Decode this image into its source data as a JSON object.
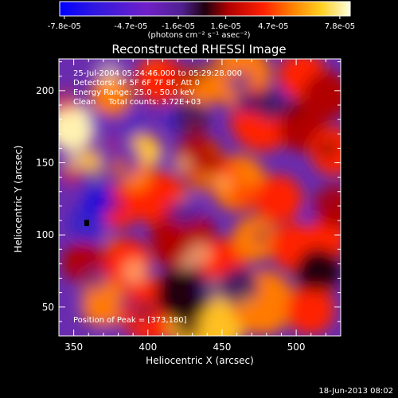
{
  "colorbar": {
    "tick_labels": [
      "-7.8e-05",
      "-4.7e-05",
      "-1.6e-05",
      "1.6e-05",
      "4.7e-05",
      "7.8e-05"
    ],
    "units_label": "(photons cm⁻² s⁻¹ asec⁻²)",
    "range": [
      -7.8e-05,
      7.8e-05
    ]
  },
  "chart_data": {
    "type": "heatmap",
    "title": "Reconstructed RHESSI Image",
    "xlabel": "Heliocentric X (arcsec)",
    "ylabel": "Heliocentric Y (arcsec)",
    "xlim": [
      340,
      530
    ],
    "ylim": [
      30,
      222
    ],
    "x_ticks": [
      350,
      400,
      450,
      500
    ],
    "y_ticks": [
      50,
      100,
      150,
      200
    ],
    "x_tick_labels": [
      "350",
      "400",
      "450",
      "500"
    ],
    "y_tick_labels": [
      "50",
      "100",
      "150",
      "200"
    ],
    "colormap": "rainbow-heat (blue-purple-red-orange-yellow-white)",
    "peak": [
      373,
      180
    ],
    "annotations": {
      "time_range": "25-Jul-2004 05:24:46.000 to 05:29:28.000",
      "detectors": "Detectors: 4F 5F 6F 7F 8F, Att 0",
      "energy": "Energy Range: 25.0 - 50.0 keV",
      "method": "Clean     Total counts: 3.72E+03",
      "peak_label": "Position of Peak = [373,180]"
    }
  },
  "footer": {
    "timestamp": "18-Jun-2013 08:02"
  }
}
